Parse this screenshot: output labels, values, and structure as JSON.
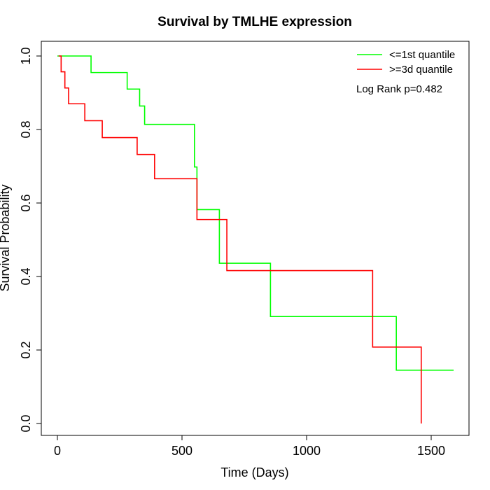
{
  "chart_data": {
    "type": "line",
    "step": true,
    "title": "Survival by TMLHE expression",
    "xlabel": "Time (Days)",
    "ylabel": "Survival Probability",
    "xlim": [
      0,
      1600
    ],
    "ylim": [
      0,
      1.0
    ],
    "x_ticks": [
      0,
      500,
      1000,
      1500
    ],
    "x_tick_labels": [
      "0",
      "500",
      "1000",
      "1500"
    ],
    "y_ticks": [
      0.0,
      0.2,
      0.4,
      0.6,
      0.8,
      1.0
    ],
    "y_tick_labels": [
      "0.0",
      "0.2",
      "0.4",
      "0.6",
      "0.8",
      "1.0"
    ],
    "grid": false,
    "legend_position": "top-right",
    "annotation": "Log Rank p=0.482",
    "series": [
      {
        "name": "<=1st quantile",
        "color": "#00ff00",
        "x": [
          0,
          135,
          280,
          330,
          350,
          550,
          560,
          570,
          650,
          855,
          1360,
          1590
        ],
        "y": [
          1.0,
          0.955,
          0.91,
          0.864,
          0.814,
          0.698,
          0.582,
          0.582,
          0.436,
          0.291,
          0.145,
          0.145
        ]
      },
      {
        "name": ">=3d quantile",
        "color": "#ff0000",
        "x": [
          5,
          15,
          30,
          45,
          110,
          180,
          320,
          390,
          560,
          680,
          1265,
          1460,
          1460
        ],
        "y": [
          1.0,
          0.957,
          0.913,
          0.87,
          0.824,
          0.778,
          0.732,
          0.666,
          0.555,
          0.416,
          0.208,
          0.208,
          0.0
        ]
      }
    ]
  }
}
